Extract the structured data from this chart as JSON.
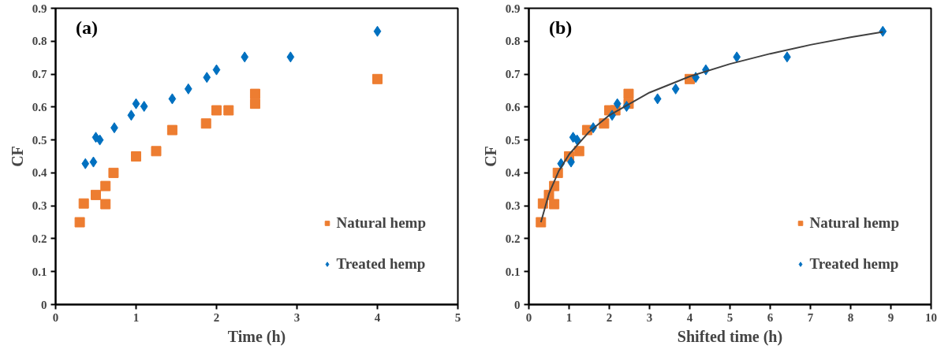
{
  "chart_data": [
    {
      "type": "scatter",
      "xlabel": "Time (h)",
      "ylabel": "CF",
      "annotations": [
        "(a)"
      ],
      "xlim": [
        0,
        5
      ],
      "ylim": [
        0,
        0.9
      ],
      "xticks": [
        0,
        1,
        2,
        3,
        4,
        5
      ],
      "yticks": [
        0,
        0.1,
        0.2,
        0.3,
        0.4,
        0.5,
        0.6,
        0.7,
        0.8,
        0.9
      ],
      "grid": false,
      "legend": "bottom right",
      "series": [
        {
          "name": "Natural hemp",
          "color": "#ed7d31",
          "marker": "square",
          "x": [
            0.3,
            0.35,
            0.5,
            0.62,
            0.62,
            0.72,
            1.0,
            1.25,
            1.45,
            1.87,
            2.0,
            2.15,
            2.48,
            2.48,
            4.0
          ],
          "values": [
            0.25,
            0.307,
            0.333,
            0.36,
            0.305,
            0.4,
            0.45,
            0.466,
            0.53,
            0.55,
            0.59,
            0.59,
            0.61,
            0.64,
            0.685
          ]
        },
        {
          "name": "Treated hemp",
          "color": "#0070c0",
          "marker": "diamond",
          "x": [
            0.37,
            0.47,
            0.5,
            0.55,
            0.73,
            0.94,
            1.0,
            1.1,
            1.45,
            1.65,
            1.88,
            2.0,
            2.35,
            2.92,
            4.0
          ],
          "values": [
            0.428,
            0.433,
            0.508,
            0.5,
            0.537,
            0.575,
            0.61,
            0.602,
            0.625,
            0.655,
            0.69,
            0.713,
            0.752,
            0.752,
            0.83
          ]
        }
      ]
    },
    {
      "type": "scatter",
      "xlabel": "Shifted time (h)",
      "ylabel": "CF",
      "annotations": [
        "(b)"
      ],
      "xlim": [
        0,
        10
      ],
      "ylim": [
        0,
        0.9
      ],
      "xticks": [
        0,
        1,
        2,
        3,
        4,
        5,
        6,
        7,
        8,
        9,
        10
      ],
      "yticks": [
        0,
        0.1,
        0.2,
        0.3,
        0.4,
        0.5,
        0.6,
        0.7,
        0.8,
        0.9
      ],
      "grid": false,
      "legend": "bottom right",
      "series": [
        {
          "name": "Natural hemp",
          "color": "#ed7d31",
          "marker": "square",
          "x": [
            0.3,
            0.35,
            0.5,
            0.63,
            0.63,
            0.72,
            1.0,
            1.25,
            1.45,
            1.87,
            2.0,
            2.15,
            2.48,
            2.48,
            4.0
          ],
          "values": [
            0.25,
            0.307,
            0.333,
            0.36,
            0.305,
            0.4,
            0.45,
            0.466,
            0.53,
            0.55,
            0.59,
            0.59,
            0.61,
            0.64,
            0.685
          ]
        },
        {
          "name": "Treated hemp",
          "color": "#0070c0",
          "marker": "diamond",
          "x": [
            0.8,
            1.05,
            1.1,
            1.2,
            1.6,
            2.07,
            2.2,
            2.43,
            3.2,
            3.65,
            4.15,
            4.4,
            5.17,
            6.42,
            8.8
          ],
          "values": [
            0.428,
            0.433,
            0.508,
            0.5,
            0.537,
            0.575,
            0.61,
            0.602,
            0.625,
            0.655,
            0.69,
            0.713,
            0.752,
            0.752,
            0.83
          ]
        },
        {
          "type": "line",
          "color": "#404040",
          "line_style": "solid",
          "x": [
            0.3,
            0.5,
            0.75,
            1,
            1.5,
            2,
            3,
            4,
            5,
            6,
            7,
            8,
            8.8
          ],
          "values": [
            0.25,
            0.337,
            0.407,
            0.456,
            0.525,
            0.575,
            0.644,
            0.693,
            0.731,
            0.762,
            0.789,
            0.812,
            0.828
          ]
        }
      ]
    }
  ]
}
